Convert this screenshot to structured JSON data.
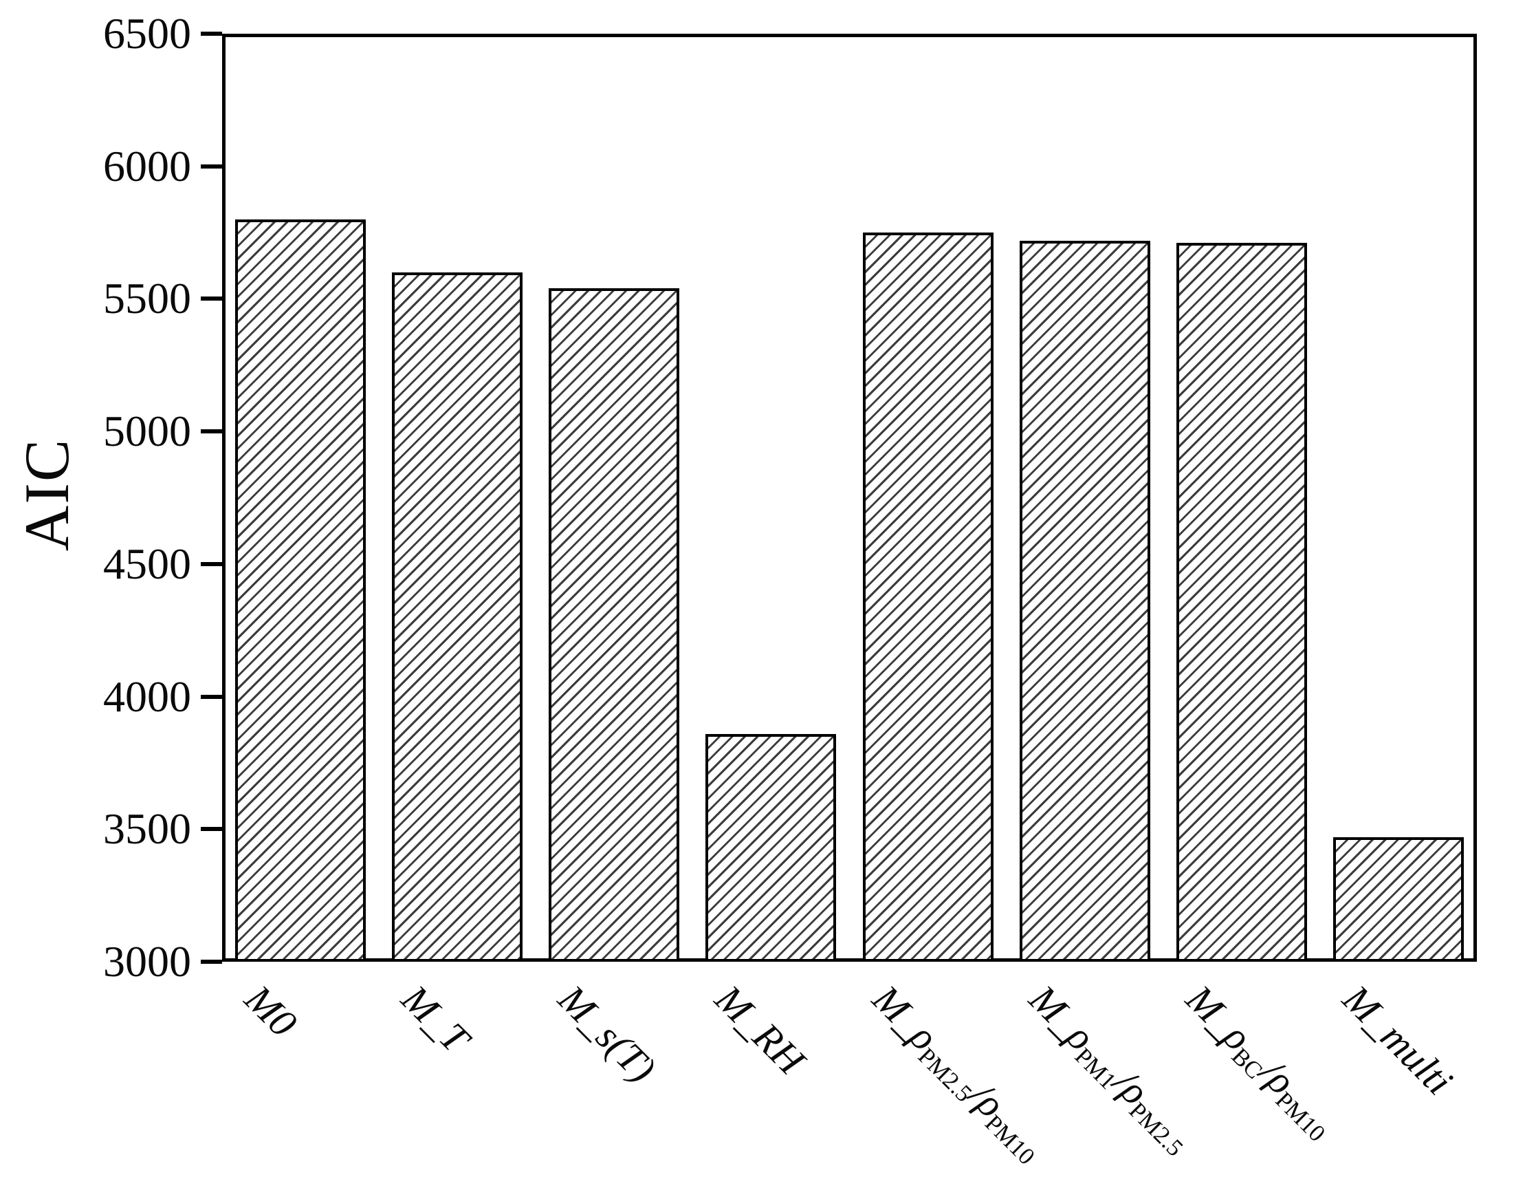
{
  "figure": {
    "background": "#ffffff",
    "frame_color": "#000000",
    "bar_fill": "#ffffff",
    "hatch_color": "#3c3c3c",
    "grid": false,
    "legend": "none"
  },
  "y_axis": {
    "label": "AIC",
    "ticks": [
      6500,
      6000,
      5500,
      5000,
      4500,
      4000,
      3500,
      3000
    ]
  },
  "chart_data": {
    "type": "bar",
    "title": "",
    "xlabel": "",
    "ylabel": "AIC",
    "ylim": [
      3000,
      6500
    ],
    "grid": false,
    "legend_position": "none",
    "bar_hatch": "///",
    "categories": [
      "M0",
      "M_T",
      "M_s(T)",
      "M_RH",
      "M_ρPM2.5/ρPM10",
      "M_ρPM1/ρPM2.5",
      "M_ρBC/ρPM10",
      "M_multi"
    ],
    "values": [
      5800,
      5600,
      5540,
      3860,
      5750,
      5720,
      5710,
      3470
    ]
  },
  "x_tick_labels": [
    {
      "segments": [
        [
          "M0",
          "it"
        ]
      ]
    },
    {
      "segments": [
        [
          "M_T",
          "it"
        ]
      ]
    },
    {
      "segments": [
        [
          "M_s(T)",
          "it"
        ]
      ]
    },
    {
      "segments": [
        [
          "M_RH",
          "it"
        ]
      ]
    },
    {
      "segments": [
        [
          "M_ρ",
          "it"
        ],
        [
          "PM2.5",
          "sub"
        ],
        [
          "/ρ",
          "it"
        ],
        [
          "PM10",
          "sub"
        ]
      ]
    },
    {
      "segments": [
        [
          "M_ρ",
          "it"
        ],
        [
          "PM1",
          "sub"
        ],
        [
          "/ρ",
          "it"
        ],
        [
          "PM2.5",
          "sub"
        ]
      ]
    },
    {
      "segments": [
        [
          "M_ρ",
          "it"
        ],
        [
          "BC",
          "sub"
        ],
        [
          "/ρ",
          "it"
        ],
        [
          "PM10",
          "sub"
        ]
      ]
    },
    {
      "segments": [
        [
          "M_multi",
          "it"
        ]
      ]
    }
  ]
}
